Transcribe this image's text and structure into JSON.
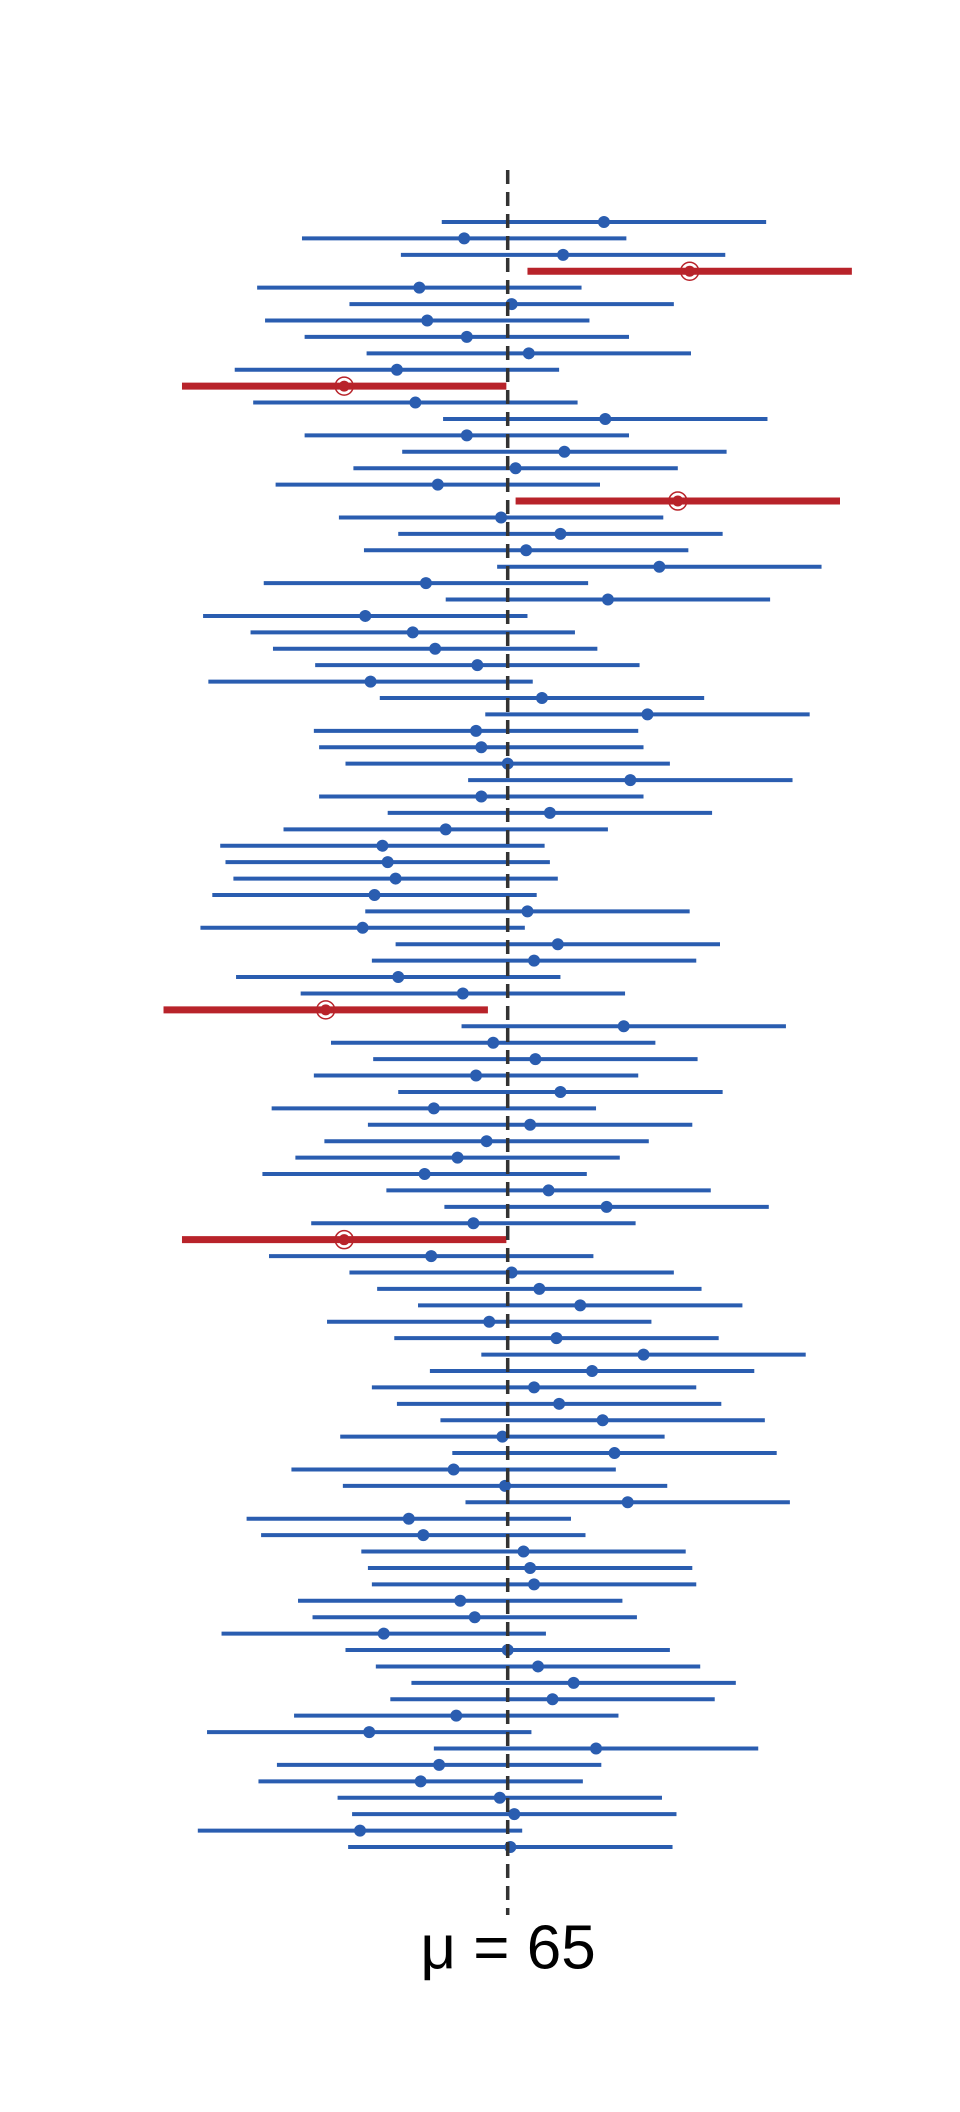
{
  "chart_data": {
    "type": "interval",
    "mu": 65,
    "mu_label": "μ = 65",
    "margin": 12.3,
    "xlim": [
      26.5,
      99.3
    ],
    "colors": {
      "covers": "#2a5db0",
      "misses": "#b8232a",
      "mu_line": "#333333"
    },
    "estimates": [
      72.3,
      61.7,
      69.2,
      78.8,
      58.3,
      65.3,
      58.9,
      61.9,
      66.6,
      56.6,
      52.6,
      58.0,
      72.4,
      61.9,
      69.3,
      65.6,
      59.7,
      77.9,
      64.5,
      69.0,
      66.4,
      76.5,
      58.8,
      72.6,
      54.2,
      57.8,
      59.5,
      62.7,
      54.6,
      67.6,
      75.6,
      62.6,
      63.0,
      65.0,
      74.3,
      63.0,
      68.2,
      60.3,
      55.5,
      55.9,
      56.5,
      54.9,
      66.5,
      54.0,
      68.8,
      67.0,
      56.7,
      61.6,
      51.2,
      73.8,
      63.9,
      67.1,
      62.6,
      69.0,
      59.4,
      66.7,
      63.4,
      61.2,
      58.7,
      68.1,
      72.5,
      62.4,
      52.6,
      59.2,
      65.3,
      67.4,
      70.5,
      63.6,
      68.7,
      75.3,
      71.4,
      67.0,
      68.9,
      72.2,
      64.6,
      73.1,
      60.9,
      64.8,
      74.1,
      57.5,
      58.6,
      66.2,
      66.7,
      67.0,
      61.4,
      62.5,
      55.6,
      65.0,
      67.3,
      70.0,
      68.4,
      61.1,
      54.5,
      71.7,
      59.8,
      58.4,
      64.4,
      65.5,
      53.8,
      65.2
    ]
  }
}
